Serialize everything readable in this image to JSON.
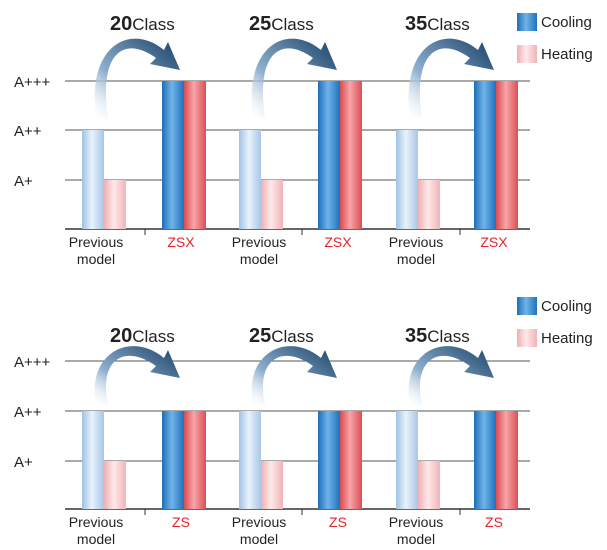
{
  "chart_data": [
    {
      "type": "bar",
      "title": "",
      "xlabel": "",
      "ylabel": "",
      "y_ticks": [
        "A+",
        "A++",
        "A+++"
      ],
      "ylim": [
        "A+",
        "A+++"
      ],
      "legend": {
        "placement": "top-right",
        "entries": [
          "Cooling",
          "Heating"
        ]
      },
      "grid": true,
      "groups": [
        {
          "title_num": "20",
          "title_unit": "Class",
          "categories": [
            {
              "label": "Previous\nmodel",
              "highlight": false
            },
            {
              "label": "ZSX",
              "highlight": true
            }
          ],
          "cooling": [
            "A++",
            "A+++"
          ],
          "heating": [
            "A+",
            "A+++"
          ]
        },
        {
          "title_num": "25",
          "title_unit": "Class",
          "categories": [
            {
              "label": "Previous\nmodel",
              "highlight": false
            },
            {
              "label": "ZSX",
              "highlight": true
            }
          ],
          "cooling": [
            "A++",
            "A+++"
          ],
          "heating": [
            "A+",
            "A+++"
          ]
        },
        {
          "title_num": "35",
          "title_unit": "Class",
          "categories": [
            {
              "label": "Previous\nmodel",
              "highlight": false
            },
            {
              "label": "ZSX",
              "highlight": true
            }
          ],
          "cooling": [
            "A++",
            "A+++"
          ],
          "heating": [
            "A+",
            "A+++"
          ]
        }
      ]
    },
    {
      "type": "bar",
      "title": "",
      "xlabel": "",
      "ylabel": "",
      "y_ticks": [
        "A+",
        "A++",
        "A+++"
      ],
      "ylim": [
        "A+",
        "A+++"
      ],
      "legend": {
        "placement": "top-right",
        "entries": [
          "Cooling",
          "Heating"
        ]
      },
      "grid": true,
      "groups": [
        {
          "title_num": "20",
          "title_unit": "Class",
          "categories": [
            {
              "label": "Previous\nmodel",
              "highlight": false
            },
            {
              "label": "ZS",
              "highlight": true
            }
          ],
          "cooling": [
            "A++",
            "A++"
          ],
          "heating": [
            "A+",
            "A++"
          ]
        },
        {
          "title_num": "25",
          "title_unit": "Class",
          "categories": [
            {
              "label": "Previous\nmodel",
              "highlight": false
            },
            {
              "label": "ZS",
              "highlight": true
            }
          ],
          "cooling": [
            "A++",
            "A++"
          ],
          "heating": [
            "A+",
            "A++"
          ]
        },
        {
          "title_num": "35",
          "title_unit": "Class",
          "categories": [
            {
              "label": "Previous\nmodel",
              "highlight": false
            },
            {
              "label": "ZS",
              "highlight": true
            }
          ],
          "cooling": [
            "A++",
            "A++"
          ],
          "heating": [
            "A+",
            "A++"
          ]
        }
      ]
    }
  ],
  "colors": {
    "cooling_old": "#bcd5ef",
    "heating_old": "#f6c4c6",
    "cooling_new": "#2f86cf",
    "heating_new": "#ea6a6e",
    "arrow": "#1a4d7a",
    "grid": "#555555",
    "highlight_label": "#e8232b",
    "text": "#222222"
  },
  "icons": {
    "group_arrow": "curved-arrow-icon"
  }
}
